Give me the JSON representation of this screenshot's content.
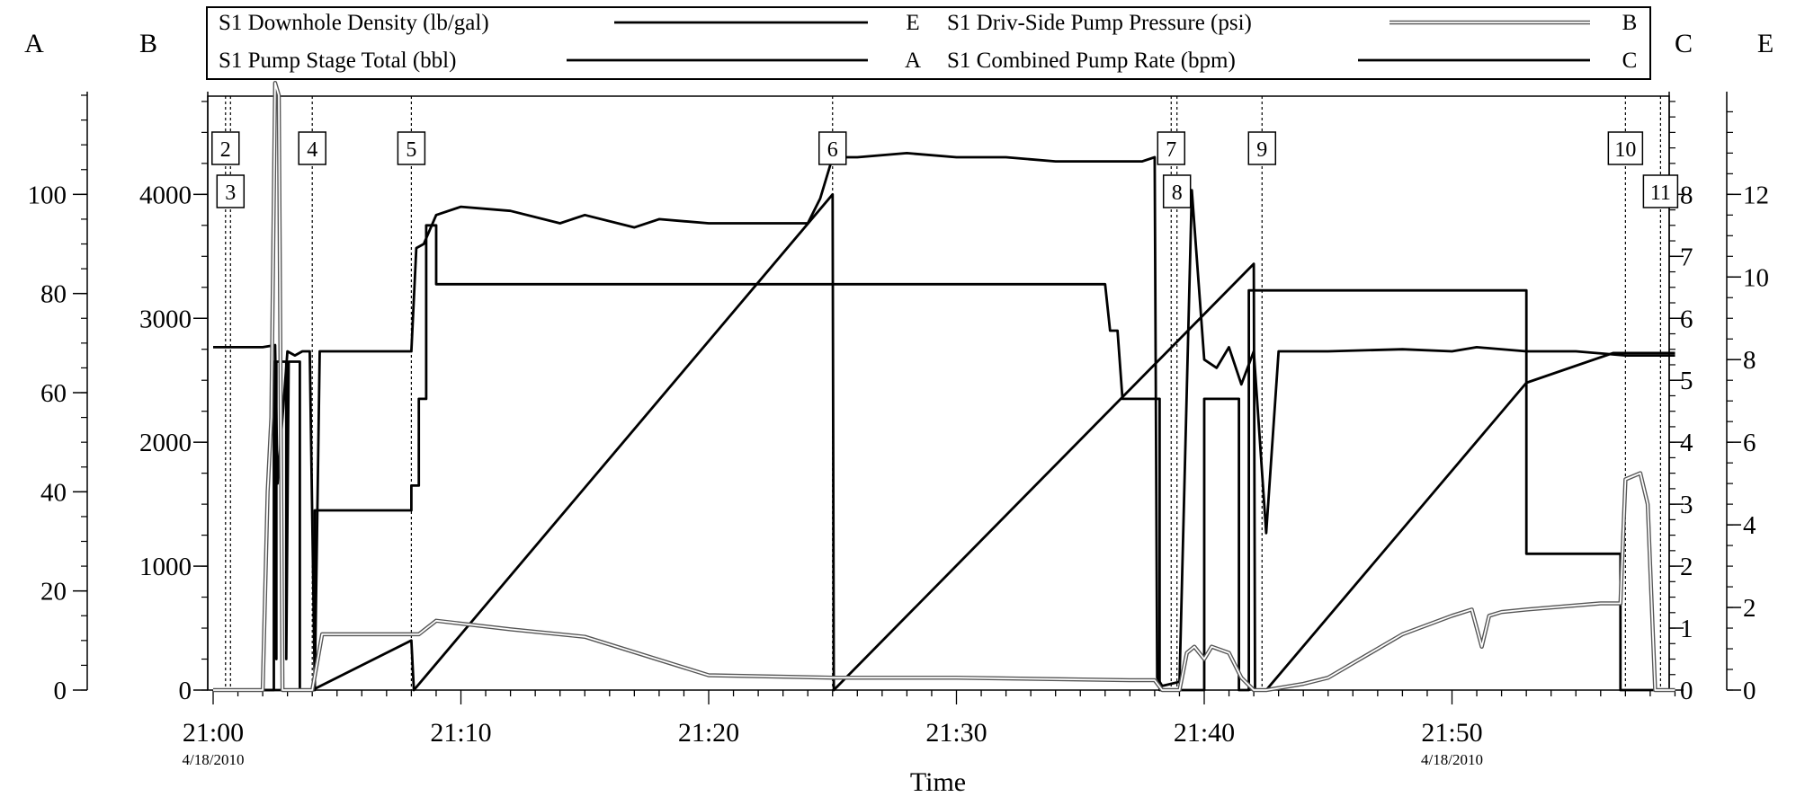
{
  "chart_data": {
    "type": "line",
    "x_axis": {
      "label": "Time",
      "range": [
        "21:00",
        "21:59"
      ],
      "ticks": [
        "21:00",
        "21:10",
        "21:20",
        "21:30",
        "21:40",
        "21:50"
      ],
      "date_labels": [
        {
          "under": "21:00",
          "text": "4/18/2010"
        },
        {
          "under": "21:50",
          "text": "4/18/2010"
        }
      ]
    },
    "axes": {
      "A": {
        "letter": "A",
        "side": "left-outer",
        "ylim": [
          0,
          120
        ],
        "ticks": [
          "0",
          "20",
          "40",
          "60",
          "80",
          "100"
        ]
      },
      "B": {
        "letter": "B",
        "side": "left-inner",
        "ylim": [
          0,
          4800
        ],
        "ticks": [
          "0",
          "1000",
          "2000",
          "3000",
          "4000"
        ]
      },
      "C": {
        "letter": "C",
        "side": "right-inner",
        "ylim": [
          0,
          9.6
        ],
        "ticks": [
          "0",
          "1",
          "2",
          "3",
          "4",
          "5",
          "6",
          "7",
          "8"
        ]
      },
      "E": {
        "letter": "E",
        "side": "right-outer",
        "ylim": [
          0,
          14.4
        ],
        "ticks": [
          "0",
          "2",
          "4",
          "6",
          "8",
          "10",
          "12"
        ]
      }
    },
    "legend": {
      "placement": "top",
      "entries": [
        {
          "name": "S1 Downhole Density (lb/gal)",
          "axis": "E",
          "style": "thick-black"
        },
        {
          "name": "S1 Driv-Side Pump Pressure (psi)",
          "axis": "B",
          "style": "double-gray"
        },
        {
          "name": "S1 Pump Stage Total (bbl)",
          "axis": "A",
          "style": "thick-black"
        },
        {
          "name": "S1 Combined Pump Rate (bpm)",
          "axis": "C",
          "style": "thick-black"
        }
      ]
    },
    "event_markers": [
      {
        "label": "2",
        "x": "21:00:30"
      },
      {
        "label": "3",
        "x": "21:00:42"
      },
      {
        "label": "4",
        "x": "21:04:00"
      },
      {
        "label": "5",
        "x": "21:08:00"
      },
      {
        "label": "6",
        "x": "21:25:00"
      },
      {
        "label": "7",
        "x": "21:38:40"
      },
      {
        "label": "8",
        "x": "21:38:54"
      },
      {
        "label": "9",
        "x": "21:42:20"
      },
      {
        "label": "10",
        "x": "21:57:00"
      },
      {
        "label": "11",
        "x": "21:58:25"
      }
    ],
    "series": [
      {
        "name": "S1 Pump Stage Total (bbl)",
        "axis": "A",
        "style": "thick-black",
        "x": [
          0,
          4.0,
          8.0,
          8.1,
          25.0,
          25.05,
          42.0,
          42.05,
          42.5,
          53.0,
          56.5,
          59.0
        ],
        "y": [
          0,
          0,
          10,
          0,
          100,
          0,
          86,
          0,
          0,
          62,
          68,
          68
        ]
      },
      {
        "name": "S1 Combined Pump Rate (bpm)",
        "axis": "C",
        "style": "thick-black",
        "x": [
          0,
          2.45,
          2.45,
          2.55,
          2.55,
          2.95,
          2.95,
          3.05,
          3.05,
          3.5,
          3.5,
          4.1,
          4.1,
          4.25,
          4.25,
          8.0,
          8.0,
          8.3,
          8.3,
          8.6,
          8.6,
          9.0,
          9.0,
          25.0,
          25.0,
          36.0,
          36.2,
          36.5,
          36.7,
          38.2,
          38.2,
          38.45,
          38.45,
          40.0,
          40.0,
          41.4,
          41.4,
          41.8,
          41.8,
          42.7,
          42.7,
          53.0,
          53.0,
          56.8,
          56.8,
          59.0
        ],
        "y": [
          0,
          0,
          5.3,
          0.5,
          5.3,
          5.3,
          0.5,
          5.3,
          5.3,
          5.3,
          0,
          0,
          2.9,
          2.9,
          2.9,
          2.9,
          3.3,
          3.3,
          4.7,
          4.7,
          7.5,
          7.5,
          6.55,
          6.55,
          6.55,
          6.55,
          5.8,
          5.8,
          4.7,
          4.7,
          0,
          0,
          0,
          0,
          4.7,
          4.7,
          0,
          0,
          6.45,
          6.45,
          6.45,
          6.45,
          2.2,
          2.2,
          0,
          0
        ]
      },
      {
        "name": "S1 Downhole Density (lb/gal)",
        "axis": "E",
        "style": "thick-black",
        "x": [
          0,
          2.0,
          2.5,
          2.6,
          3.0,
          3.3,
          3.6,
          3.9,
          4.1,
          4.3,
          6.0,
          8.0,
          8.2,
          8.5,
          9.0,
          10.0,
          12.0,
          14.0,
          15.0,
          17.0,
          18.0,
          20.0,
          22.0,
          24.0,
          24.5,
          25.0,
          26.0,
          28.0,
          30.0,
          32.0,
          34.0,
          36.0,
          37.5,
          38.0,
          38.1,
          38.3,
          39.0,
          39.5,
          40.0,
          40.5,
          41.0,
          41.5,
          42.0,
          42.5,
          43.0,
          45.0,
          48.0,
          50.0,
          51.0,
          53.0,
          55.0,
          57.0,
          59.0
        ],
        "y": [
          8.3,
          8.3,
          8.35,
          5.0,
          8.2,
          8.1,
          8.2,
          8.2,
          0.1,
          8.2,
          8.2,
          8.2,
          10.7,
          10.8,
          11.5,
          11.7,
          11.6,
          11.3,
          11.5,
          11.2,
          11.4,
          11.3,
          11.3,
          11.3,
          11.9,
          12.9,
          12.9,
          13.0,
          12.9,
          12.9,
          12.8,
          12.8,
          12.8,
          12.9,
          0.3,
          0.1,
          0.2,
          12.1,
          8.0,
          7.8,
          8.3,
          7.4,
          8.2,
          3.8,
          8.2,
          8.2,
          8.25,
          8.2,
          8.3,
          8.2,
          8.2,
          8.1,
          8.1
        ]
      },
      {
        "name": "S1 Driv-Side Pump Pressure (psi)",
        "axis": "B",
        "style": "double-gray",
        "x": [
          0,
          2.0,
          2.2,
          2.35,
          2.5,
          2.65,
          2.8,
          2.95,
          4.0,
          4.4,
          6.0,
          8.0,
          8.3,
          9.0,
          12.0,
          15.0,
          20.0,
          25.0,
          30.0,
          37.0,
          38.0,
          38.3,
          39.0,
          39.3,
          39.6,
          40.0,
          40.3,
          41.0,
          41.5,
          42.0,
          42.5,
          44.0,
          45.0,
          48.0,
          50.0,
          50.8,
          51.2,
          51.5,
          52.0,
          53.0,
          56.0,
          56.8,
          57.0,
          57.6,
          57.9,
          58.2,
          59.0
        ],
        "y": [
          0,
          0,
          1600,
          2200,
          4900,
          4800,
          0,
          0,
          0,
          450,
          450,
          450,
          450,
          560,
          490,
          430,
          120,
          100,
          100,
          80,
          80,
          0,
          0,
          300,
          350,
          250,
          350,
          300,
          100,
          0,
          0,
          50,
          100,
          450,
          600,
          650,
          350,
          600,
          630,
          650,
          700,
          700,
          1700,
          1750,
          1500,
          0,
          0
        ]
      }
    ]
  }
}
